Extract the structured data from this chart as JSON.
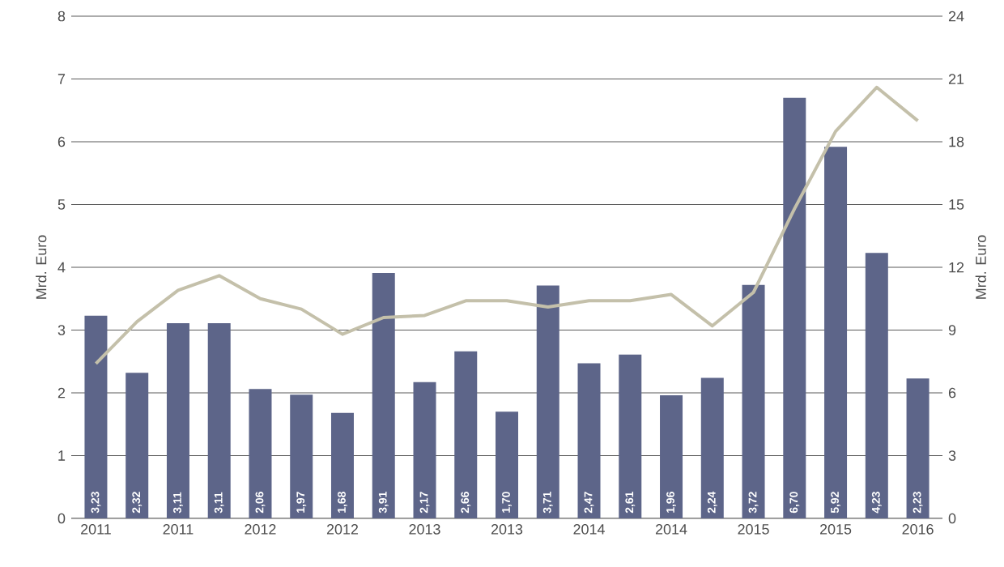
{
  "chart_data": {
    "type": "bar",
    "ylabel": "Mrd. Euro",
    "y2label": "Mrd. Euro",
    "categories": [
      "2011",
      null,
      "2011",
      null,
      "2012",
      null,
      "2012",
      null,
      "2013",
      null,
      "2013",
      null,
      "2014",
      null,
      "2014",
      null,
      "2015",
      null,
      "2015",
      null,
      "2016"
    ],
    "series": [
      {
        "color": "#5d6589",
        "values": [
          3.23,
          2.32,
          3.11,
          3.11,
          2.06,
          1.97,
          1.68,
          3.91,
          2.17,
          2.66,
          1.7,
          3.71,
          2.47,
          2.61,
          1.96,
          2.24,
          3.72,
          6.7,
          5.92,
          4.23,
          2.23
        ],
        "value_labels": [
          "3,23",
          "2,32",
          "3,11",
          "3,11",
          "2,06",
          "1,97",
          "1,68",
          "3,91",
          "2,17",
          "2,66",
          "1,70",
          "3,71",
          "2,47",
          "2,61",
          "1,96",
          "2,24",
          "3,72",
          "6,70",
          "5,92",
          "4,23",
          "2,23"
        ]
      },
      {
        "type": "line",
        "axis": "y2",
        "color": "#c4c0aa",
        "values": [
          7.4,
          9.4,
          10.9,
          11.6,
          10.5,
          10.0,
          8.8,
          9.6,
          9.7,
          10.4,
          10.4,
          10.1,
          10.4,
          10.4,
          10.7,
          9.2,
          10.8,
          14.8,
          18.5,
          20.6,
          19.0
        ]
      }
    ],
    "ylim": [
      0,
      8
    ],
    "yticks": [
      0,
      1,
      2,
      3,
      4,
      5,
      6,
      7,
      8
    ],
    "y2lim": [
      0,
      24
    ],
    "y2ticks": [
      0,
      3,
      6,
      9,
      12,
      15,
      18,
      21,
      24
    ],
    "grid": "y"
  }
}
